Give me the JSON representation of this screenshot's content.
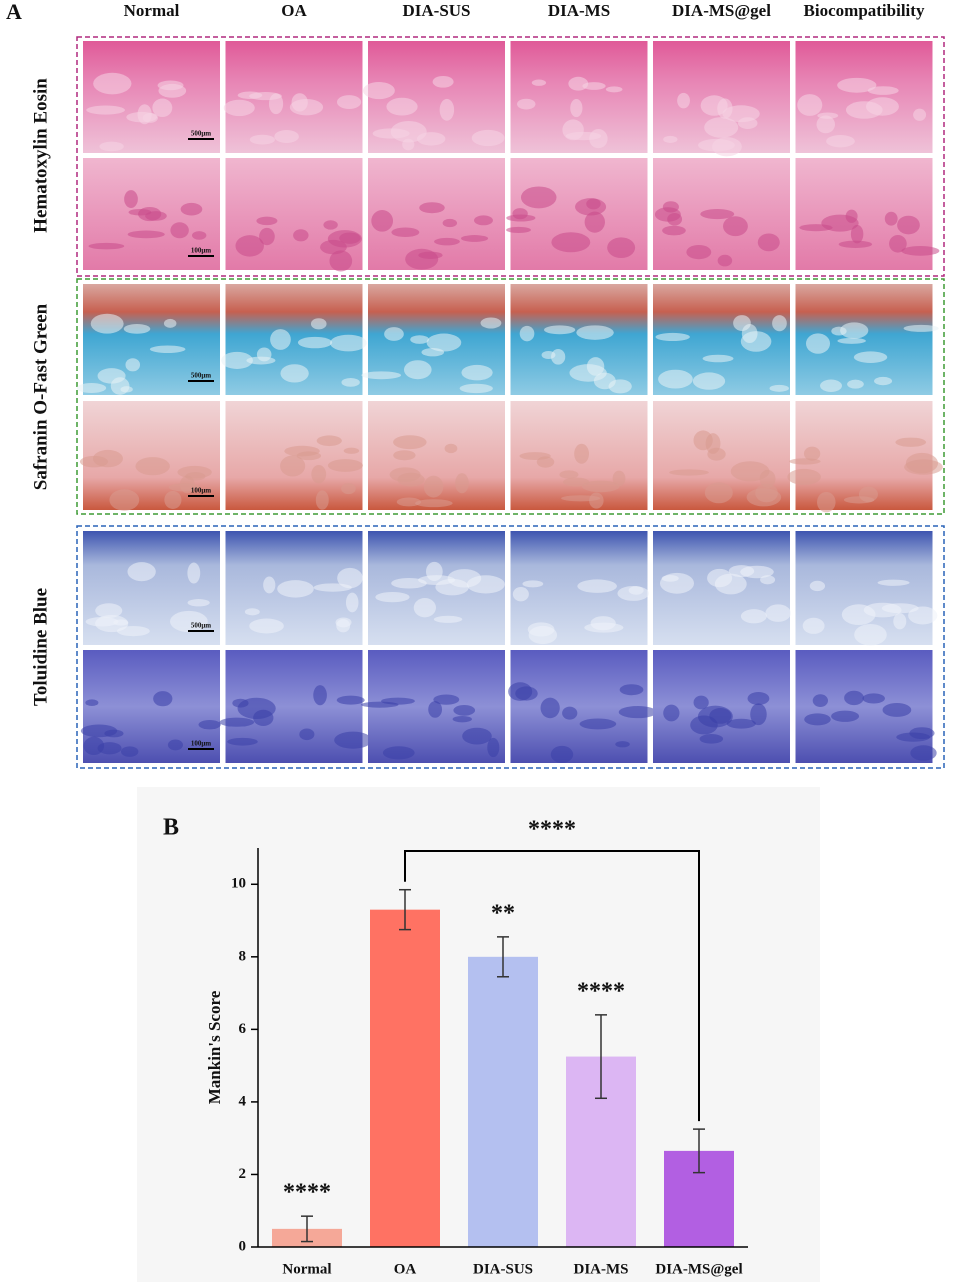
{
  "panel_a": {
    "label": "A",
    "columns": [
      "Normal",
      "OA",
      "DIA-SUS",
      "DIA-MS",
      "DIA-MS@gel",
      "Biocompatibility"
    ],
    "stains": [
      {
        "name": "Hematoxylin Eosin",
        "scale_bars": [
          "500μm",
          "100μm"
        ]
      },
      {
        "name": "Safranin O-Fast Green",
        "scale_bars": [
          "500μm",
          "100μm"
        ]
      },
      {
        "name": "Toluidine Blue",
        "scale_bars": [
          "500μm",
          "100μm"
        ]
      }
    ]
  },
  "chart_data": {
    "type": "bar",
    "panel_label": "B",
    "y_label": "Mankin's Score",
    "categories": [
      "Normal",
      "OA",
      "DIA-SUS",
      "DIA-MS",
      "DIA-MS@gel"
    ],
    "series": [
      {
        "values": [
          0.5,
          9.3,
          8.0,
          5.25,
          2.65
        ],
        "errors": [
          0.35,
          0.55,
          0.55,
          1.15,
          0.6
        ],
        "colors": [
          "#f5a898",
          "#ff7263",
          "#b4c0f0",
          "#dcb6f3",
          "#b25fe2"
        ]
      }
    ],
    "ylim": [
      0,
      11
    ],
    "yticks": [
      0,
      2,
      4,
      6,
      8,
      10
    ],
    "annotations": [
      {
        "text": "****",
        "category": "Normal"
      },
      {
        "text": "**",
        "category": "DIA-SUS"
      },
      {
        "text": "****",
        "category": "DIA-MS"
      }
    ],
    "bracket": {
      "text": "****",
      "from": "OA",
      "to": "DIA-MS@gel"
    }
  }
}
